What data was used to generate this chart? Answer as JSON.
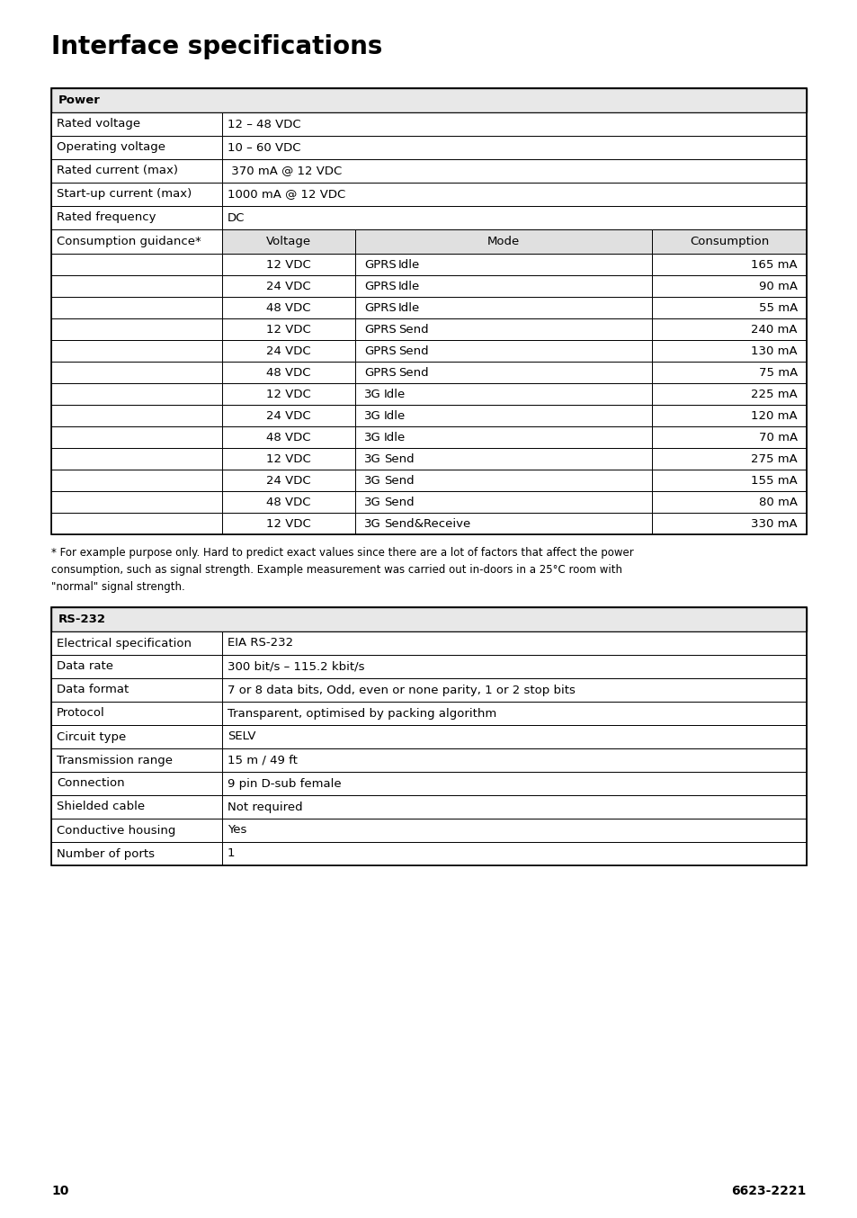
{
  "title": "Interface specifications",
  "title_fontsize": 20,
  "body_fontsize": 9.5,
  "page_bg": "#ffffff",
  "table_border_color": "#000000",
  "header_bg": "#e8e8e8",
  "subheader_bg": "#e0e0e0",
  "text_color": "#000000",
  "page_number": "10",
  "doc_number": "6623-2221",
  "footnote": "* For example purpose only. Hard to predict exact values since there are a lot of factors that affect the power\nconsumption, such as signal strength. Example measurement was carried out in-doors in a 25°C room with\n\"normal\" signal strength.",
  "power_table": {
    "header": "Power",
    "simple_rows": [
      [
        "Rated voltage",
        "12 – 48 VDC"
      ],
      [
        "Operating voltage",
        "10 – 60 VDC"
      ],
      [
        "Rated current (max)",
        " 370 mA @ 12 VDC"
      ],
      [
        "Start-up current (max)",
        "1000 mA @ 12 VDC"
      ],
      [
        "Rated frequency",
        "DC"
      ]
    ],
    "consumption_rows": [
      [
        "12 VDC",
        "GPRS",
        "Idle",
        "165 mA"
      ],
      [
        "24 VDC",
        "GPRS",
        "Idle",
        "90 mA"
      ],
      [
        "48 VDC",
        "GPRS",
        "Idle",
        "55 mA"
      ],
      [
        "12 VDC",
        "GPRS",
        "Send",
        "240 mA"
      ],
      [
        "24 VDC",
        "GPRS",
        "Send",
        "130 mA"
      ],
      [
        "48 VDC",
        "GPRS",
        "Send",
        "75 mA"
      ],
      [
        "12 VDC",
        "3G",
        "Idle",
        "225 mA"
      ],
      [
        "24 VDC",
        "3G",
        "Idle",
        "120 mA"
      ],
      [
        "48 VDC",
        "3G",
        "Idle",
        "70 mA"
      ],
      [
        "12 VDC",
        "3G",
        "Send",
        "275 mA"
      ],
      [
        "24 VDC",
        "3G",
        "Send",
        "155 mA"
      ],
      [
        "48 VDC",
        "3G",
        "Send",
        "80 mA"
      ],
      [
        "12 VDC",
        "3G",
        "Send&Receive",
        "330 mA"
      ]
    ]
  },
  "rs232_table": {
    "header": "RS-232",
    "rows": [
      [
        "Electrical specification",
        "EIA RS-232"
      ],
      [
        "Data rate",
        "300 bit/s – 115.2 kbit/s"
      ],
      [
        "Data format",
        "7 or 8 data bits, Odd, even or none parity, 1 or 2 stop bits"
      ],
      [
        "Protocol",
        "Transparent, optimised by packing algorithm"
      ],
      [
        "Circuit type",
        "SELV"
      ],
      [
        "Transmission range",
        "15 m / 49 ft"
      ],
      [
        "Connection",
        "9 pin D-sub female"
      ],
      [
        "Shielded cable",
        "Not required"
      ],
      [
        "Conductive housing",
        "Yes"
      ],
      [
        "Number of ports",
        "1"
      ]
    ]
  }
}
